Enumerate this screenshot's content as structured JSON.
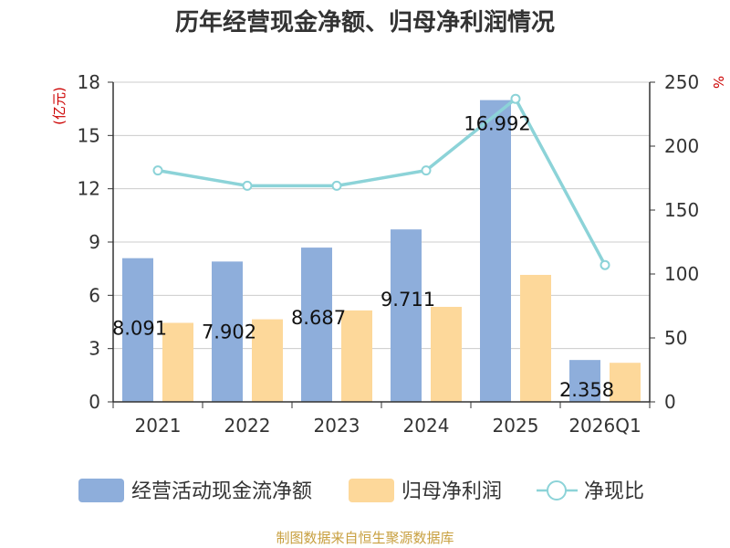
{
  "chart_data": {
    "type": "bar",
    "title": "历年经营现金净额、归母净利润情况",
    "source_text": "制图数据来自恒生聚源数据库",
    "y_left_label": "(亿元)",
    "y_right_label": "%",
    "y_left_ticks": [
      "0",
      "3",
      "6",
      "9",
      "12",
      "15",
      "18"
    ],
    "y_right_ticks": [
      "0",
      "50",
      "100",
      "150",
      "200",
      "250"
    ],
    "ylim_left": [
      0,
      18
    ],
    "ylim_right": [
      0,
      250
    ],
    "categories": [
      "2021",
      "2022",
      "2023",
      "2024",
      "2025",
      "2026Q1"
    ],
    "grid": true,
    "legend_position": "bottom",
    "series": [
      {
        "name": "经营活动现金流净额",
        "type": "bar",
        "axis": "left",
        "color": "#8eaedb",
        "values": [
          8.091,
          7.902,
          8.687,
          9.711,
          16.992,
          2.358
        ],
        "labels": [
          "8.091",
          "7.902",
          "8.687",
          "9.711",
          "16.992",
          "2.358"
        ]
      },
      {
        "name": "归母净利润",
        "type": "bar",
        "axis": "left",
        "color": "#fdd89a",
        "values": [
          4.45,
          4.65,
          5.15,
          5.35,
          7.15,
          2.2
        ]
      },
      {
        "name": "净现比",
        "type": "line",
        "axis": "right",
        "color": "#8cd3d8",
        "values": [
          181,
          169,
          169,
          181,
          237,
          107
        ]
      }
    ]
  }
}
